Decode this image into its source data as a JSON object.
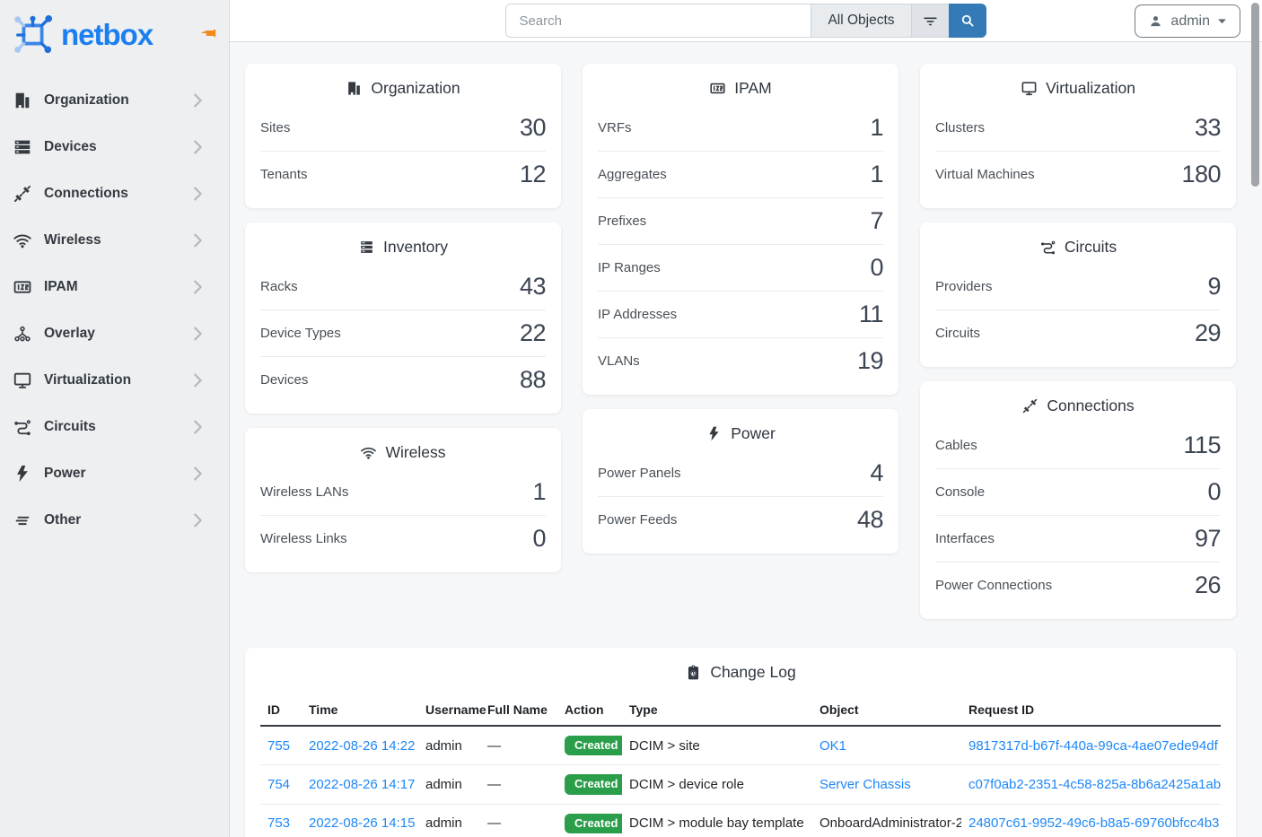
{
  "brand": {
    "name": "netbox"
  },
  "topbar": {
    "search": {
      "placeholder": "Search",
      "scope": "All Objects"
    },
    "user_menu": {
      "label": "admin"
    }
  },
  "sidebar": {
    "items": [
      {
        "label": "Organization",
        "icon": "organization-icon"
      },
      {
        "label": "Devices",
        "icon": "devices-icon"
      },
      {
        "label": "Connections",
        "icon": "connections-icon"
      },
      {
        "label": "Wireless",
        "icon": "wireless-icon"
      },
      {
        "label": "IPAM",
        "icon": "ipam-icon"
      },
      {
        "label": "Overlay",
        "icon": "overlay-icon"
      },
      {
        "label": "Virtualization",
        "icon": "virtualization-icon"
      },
      {
        "label": "Circuits",
        "icon": "circuits-icon"
      },
      {
        "label": "Power",
        "icon": "power-icon"
      },
      {
        "label": "Other",
        "icon": "other-icon"
      }
    ]
  },
  "dashboard": {
    "columns": [
      [
        {
          "title": "Organization",
          "icon": "organization-icon",
          "rows": [
            {
              "label": "Sites",
              "value": "30"
            },
            {
              "label": "Tenants",
              "value": "12"
            }
          ]
        },
        {
          "title": "Inventory",
          "icon": "inventory-icon",
          "rows": [
            {
              "label": "Racks",
              "value": "43"
            },
            {
              "label": "Device Types",
              "value": "22"
            },
            {
              "label": "Devices",
              "value": "88"
            }
          ]
        },
        {
          "title": "Wireless",
          "icon": "wireless-icon",
          "rows": [
            {
              "label": "Wireless LANs",
              "value": "1"
            },
            {
              "label": "Wireless Links",
              "value": "0"
            }
          ]
        }
      ],
      [
        {
          "title": "IPAM",
          "icon": "ipam-icon",
          "rows": [
            {
              "label": "VRFs",
              "value": "1"
            },
            {
              "label": "Aggregates",
              "value": "1"
            },
            {
              "label": "Prefixes",
              "value": "7"
            },
            {
              "label": "IP Ranges",
              "value": "0"
            },
            {
              "label": "IP Addresses",
              "value": "11"
            },
            {
              "label": "VLANs",
              "value": "19"
            }
          ]
        },
        {
          "title": "Power",
          "icon": "power-icon",
          "rows": [
            {
              "label": "Power Panels",
              "value": "4"
            },
            {
              "label": "Power Feeds",
              "value": "48"
            }
          ]
        }
      ],
      [
        {
          "title": "Virtualization",
          "icon": "virtualization-icon",
          "rows": [
            {
              "label": "Clusters",
              "value": "33"
            },
            {
              "label": "Virtual Machines",
              "value": "180"
            }
          ]
        },
        {
          "title": "Circuits",
          "icon": "circuits-icon",
          "rows": [
            {
              "label": "Providers",
              "value": "9"
            },
            {
              "label": "Circuits",
              "value": "29"
            }
          ]
        },
        {
          "title": "Connections",
          "icon": "connections-icon",
          "rows": [
            {
              "label": "Cables",
              "value": "115"
            },
            {
              "label": "Console",
              "value": "0"
            },
            {
              "label": "Interfaces",
              "value": "97"
            },
            {
              "label": "Power Connections",
              "value": "26"
            }
          ]
        }
      ]
    ]
  },
  "changelog": {
    "title": "Change Log",
    "icon": "clipboard-clock-icon",
    "columns": [
      "ID",
      "Time",
      "Username",
      "Full Name",
      "Action",
      "Type",
      "Object",
      "Request ID"
    ],
    "rows": [
      {
        "id": "755",
        "time": "2022-08-26 14:22",
        "username": "admin",
        "full_name": "—",
        "action": "Created",
        "type": "DCIM > site",
        "object": "OK1",
        "object_link": true,
        "request_id": "9817317d-b67f-440a-99ca-4ae07ede94df"
      },
      {
        "id": "754",
        "time": "2022-08-26 14:17",
        "username": "admin",
        "full_name": "—",
        "action": "Created",
        "type": "DCIM > device role",
        "object": "Server Chassis",
        "object_link": true,
        "request_id": "c07f0ab2-2351-4c58-825a-8b6a2425a1ab"
      },
      {
        "id": "753",
        "time": "2022-08-26 14:15",
        "username": "admin",
        "full_name": "—",
        "action": "Created",
        "type": "DCIM > module bay template",
        "object": "OnboardAdministrator-2",
        "object_link": false,
        "request_id": "24807c61-9952-49c6-b8a5-69760bfcc4b3"
      }
    ]
  },
  "colors": {
    "primary": "#337ab7",
    "link": "#1e87f5",
    "success": "#2b9e4b",
    "brand_blue": "#1b7ff2",
    "pin_orange": "#f08a1d",
    "sidebar_bg": "#edeff1",
    "page_bg": "#f6f7f8"
  }
}
